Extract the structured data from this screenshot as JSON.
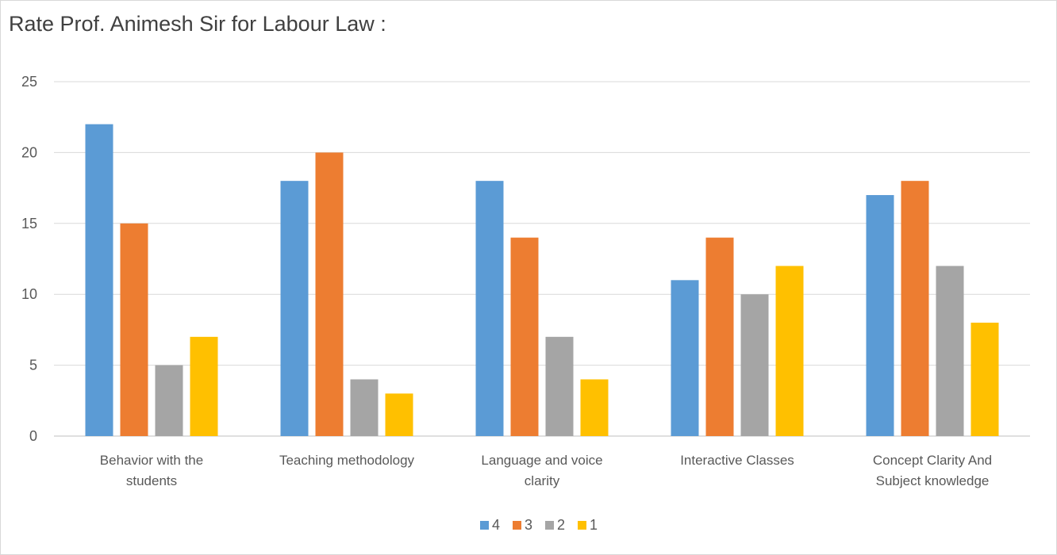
{
  "chart_data": {
    "type": "bar",
    "title": "Rate Prof. Animesh Sir for Labour Law :",
    "categories": [
      [
        "Behavior with the",
        "students"
      ],
      [
        "Teaching methodology"
      ],
      [
        "Language and voice",
        "clarity"
      ],
      [
        "Interactive Classes"
      ],
      [
        "Concept Clarity And",
        "Subject knowledge"
      ]
    ],
    "series": [
      {
        "name": "4",
        "color": "#5B9BD5",
        "values": [
          22,
          18,
          18,
          11,
          17
        ]
      },
      {
        "name": "3",
        "color": "#ED7D31",
        "values": [
          15,
          20,
          14,
          14,
          18
        ]
      },
      {
        "name": "2",
        "color": "#A5A5A5",
        "values": [
          5,
          4,
          7,
          10,
          12
        ]
      },
      {
        "name": "1",
        "color": "#FFC000",
        "values": [
          7,
          3,
          4,
          12,
          8
        ]
      }
    ],
    "yticks": [
      "0",
      "5",
      "10",
      "15",
      "20",
      "25"
    ],
    "ylim": [
      0,
      25
    ],
    "xlabel": "",
    "ylabel": "",
    "grid": true,
    "legend": "bottom-center"
  }
}
